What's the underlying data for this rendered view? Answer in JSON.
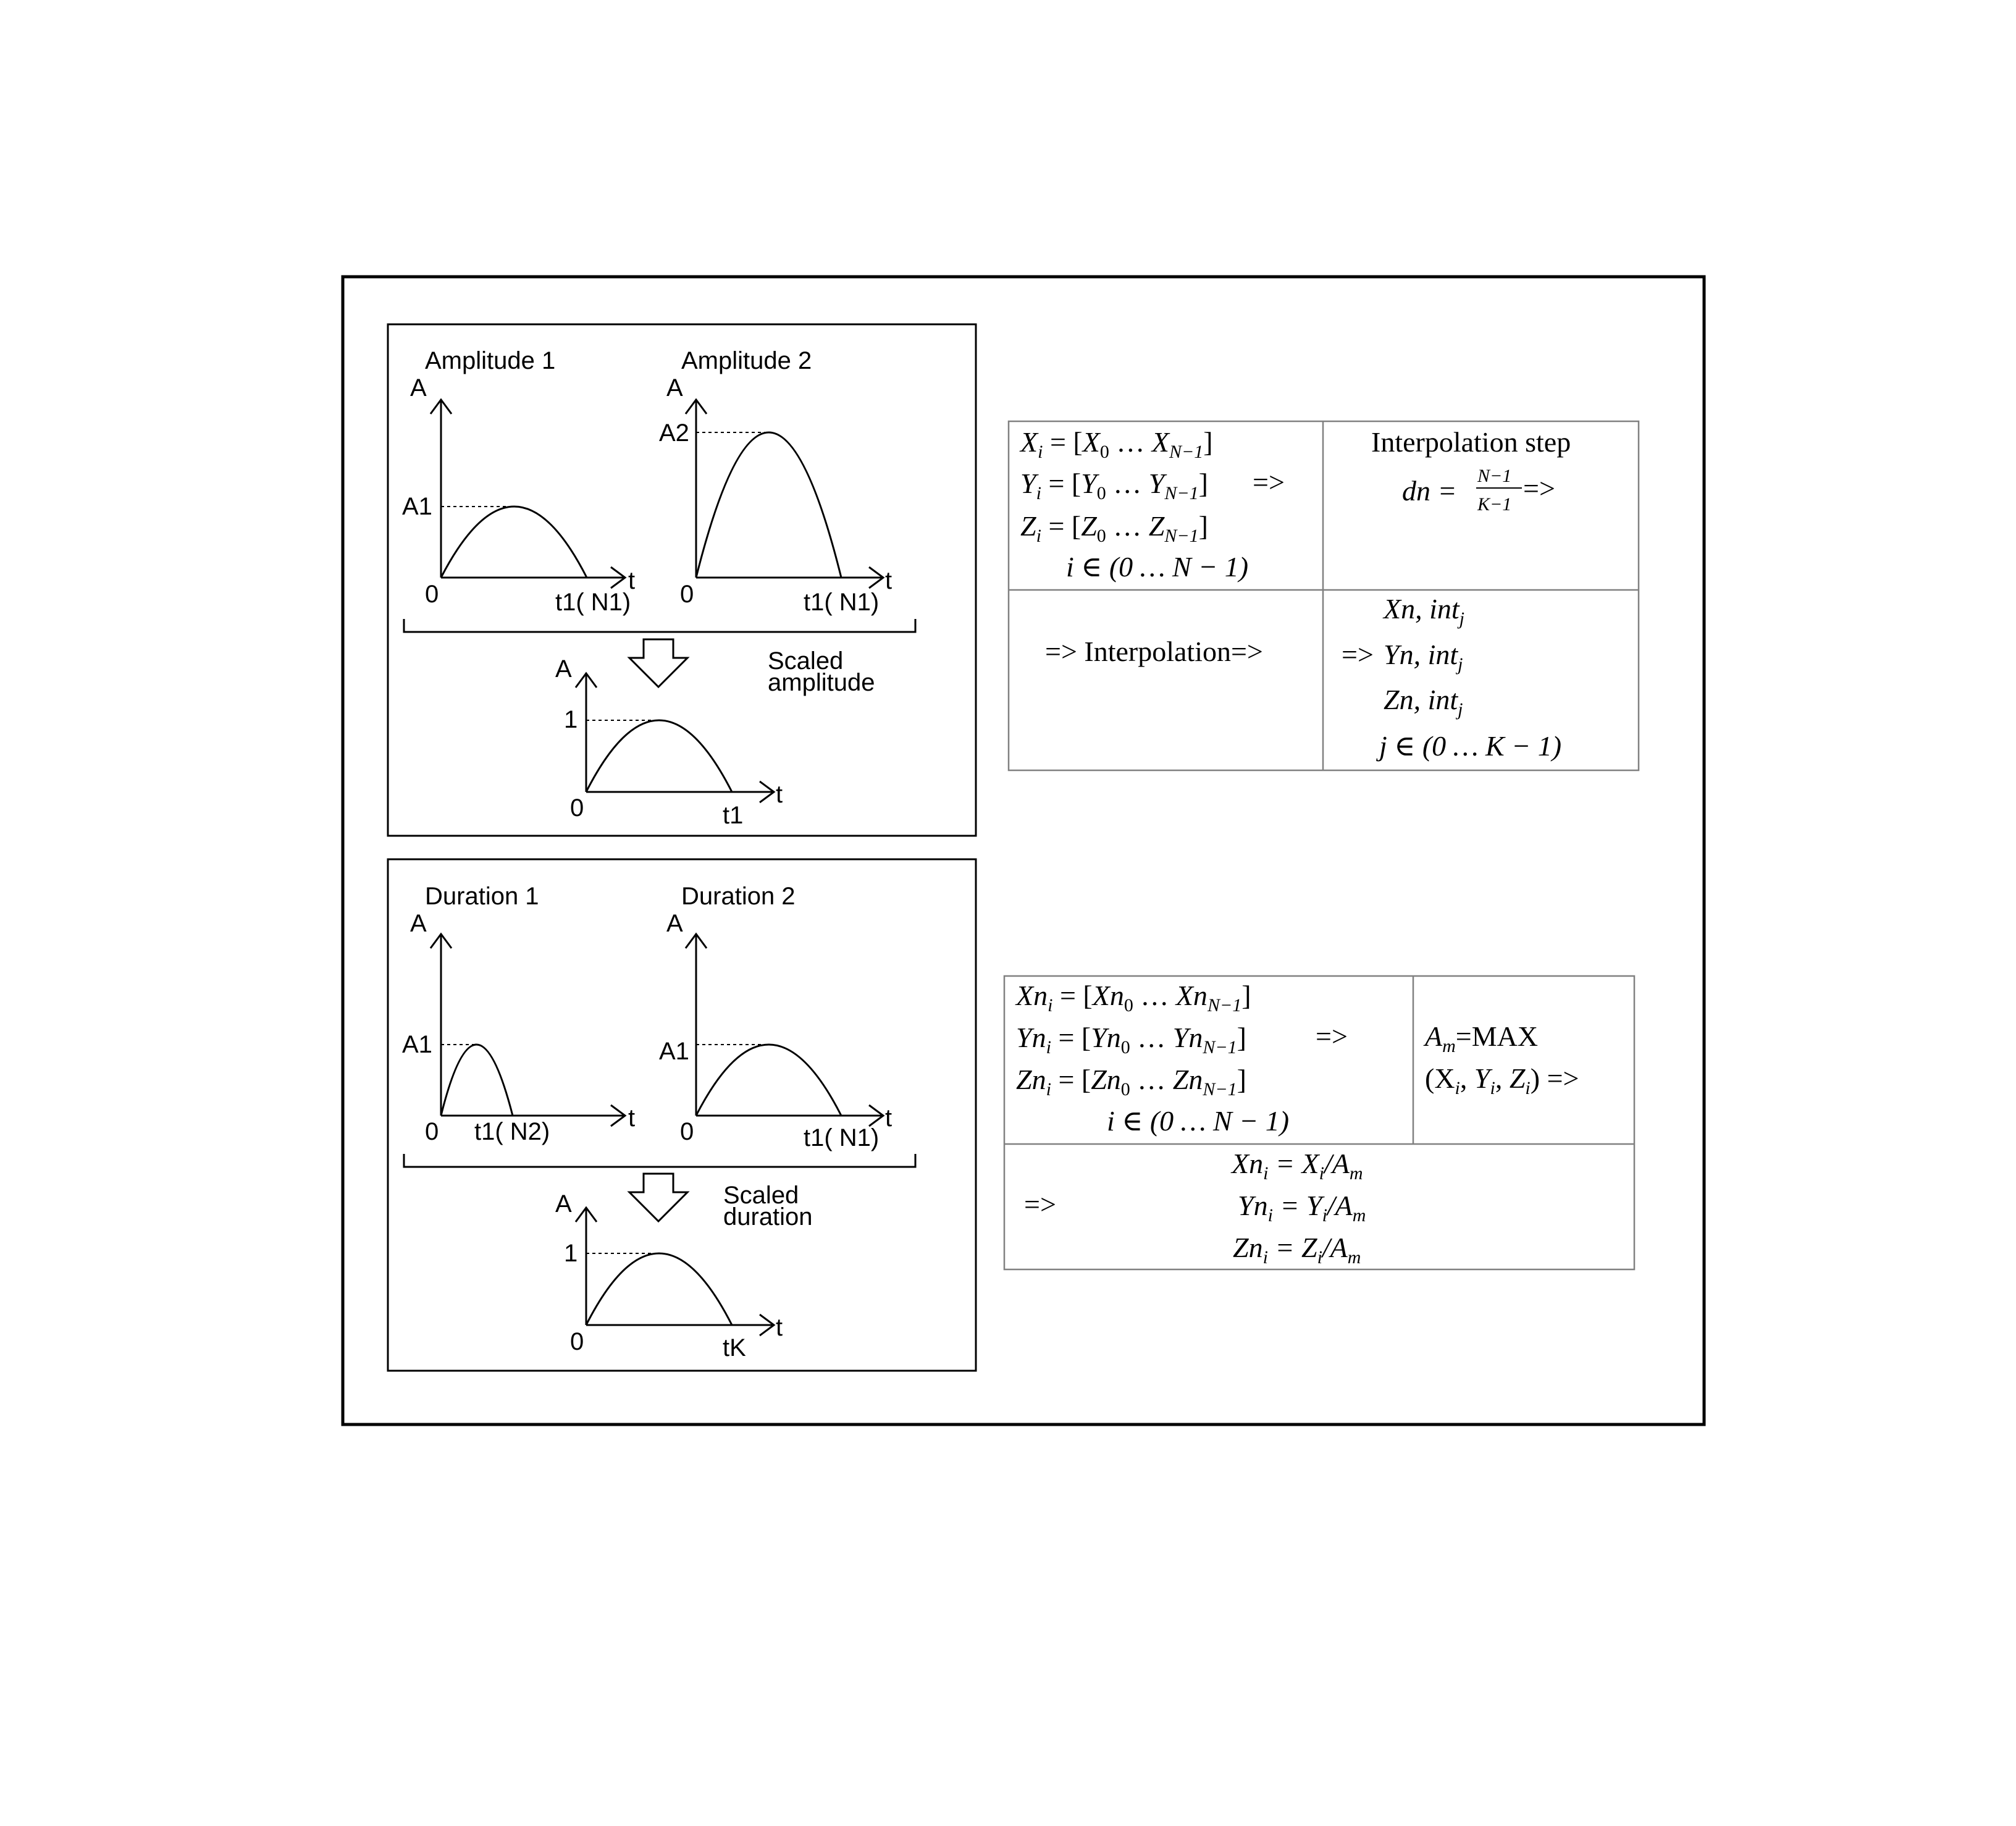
{
  "amplitude_panel": {
    "title1": "Amplitude 1",
    "title2": "Amplitude 2",
    "scaled_line1": "Scaled",
    "scaled_line2": "amplitude",
    "graph1": {
      "y_axis": "A",
      "x_axis": "t",
      "origin": "0",
      "peak": "A1",
      "end": "t1( N1)"
    },
    "graph2": {
      "y_axis": "A",
      "x_axis": "t",
      "origin": "0",
      "peak": "A2",
      "end": "t1( N1)"
    },
    "result": {
      "y_axis": "A",
      "x_axis": "t",
      "origin": "0",
      "peak": "1",
      "end": "t1"
    }
  },
  "duration_panel": {
    "title1": "Duration 1",
    "title2": "Duration 2",
    "scaled_line1": "Scaled",
    "scaled_line2": "duration",
    "graph1": {
      "y_axis": "A",
      "x_axis": "t",
      "origin": "0",
      "peak": "A1",
      "end": "t1( N2)"
    },
    "graph2": {
      "y_axis": "A",
      "x_axis": "t",
      "origin": "0",
      "peak": "A1",
      "end": "t1( N1)"
    },
    "result": {
      "y_axis": "A",
      "x_axis": "t",
      "origin": "0",
      "peak": "1",
      "end": "tK"
    }
  },
  "interpolation_table": {
    "arrow": "=>",
    "step_title": "Interpolation step",
    "step_dn": "dn =",
    "step_num": "N−1",
    "step_den": "K−1",
    "middle": "=> Interpolation=>",
    "out_arrow": "=>",
    "index_in": "i ∈ (0 … N − 1)",
    "index_out": "j ∈ (0 … K − 1)"
  },
  "normalization_table": {
    "arrow": "=>",
    "max_label": "=MAX",
    "max_args": "(X",
    "result_arrow": "=>",
    "index": "i ∈ (0 … N − 1)"
  }
}
